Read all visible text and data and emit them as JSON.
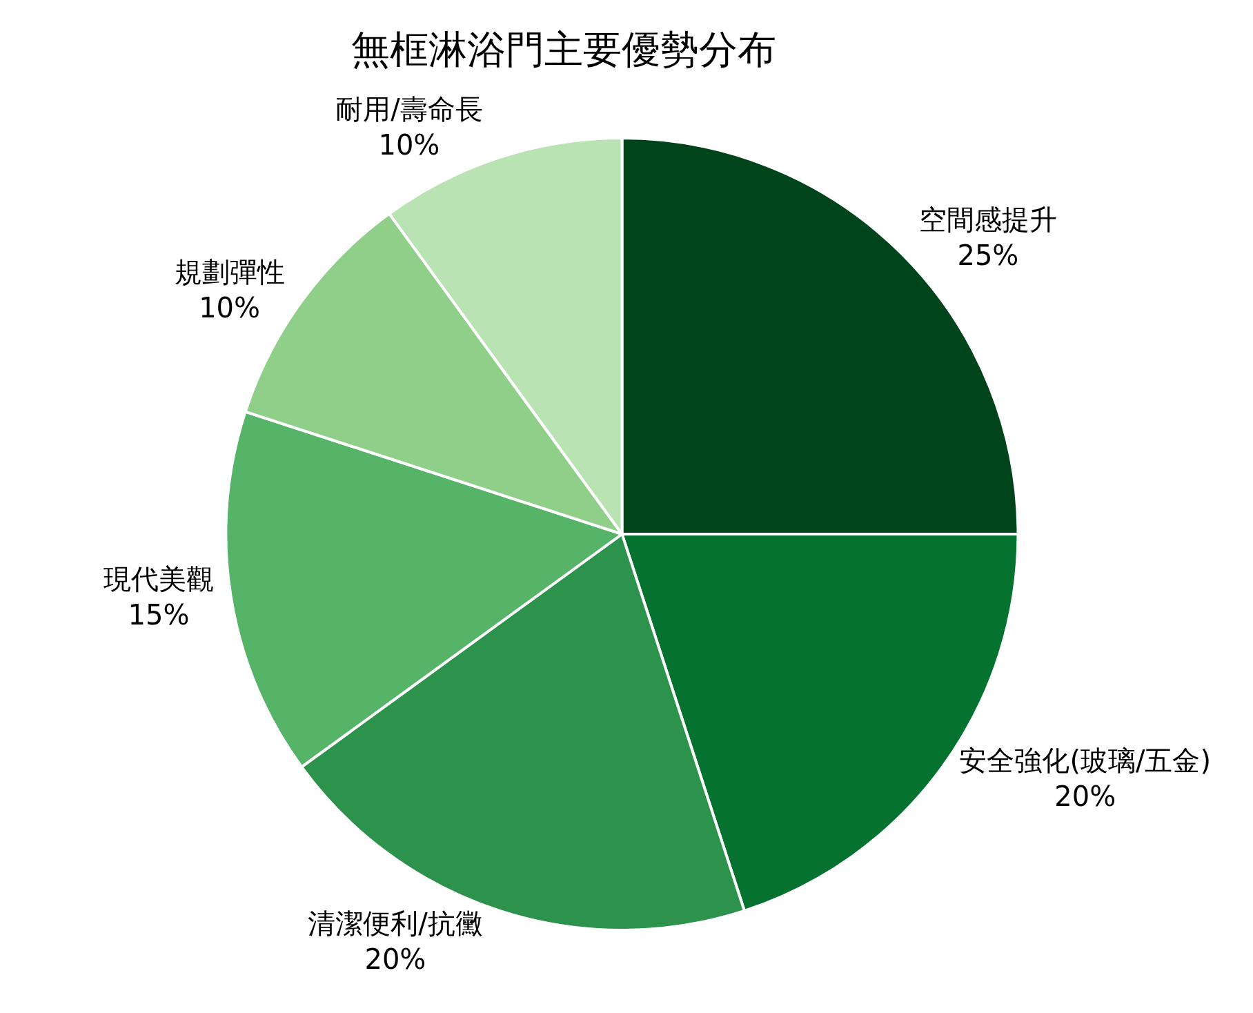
{
  "chart_data": {
    "type": "pie",
    "title": "無框淋浴門主要優勢分布",
    "categories": [
      "空間感提升",
      "安全強化(玻璃/五金)",
      "清潔便利/抗黴",
      "現代美觀",
      "規劃彈性",
      "耐用/壽命長"
    ],
    "values": [
      25,
      20,
      20,
      15,
      10,
      10
    ],
    "value_labels": [
      "25%",
      "20%",
      "20%",
      "15%",
      "10%",
      "10%"
    ],
    "colors": [
      "#00441b",
      "#067230",
      "#2d924b",
      "#55b467",
      "#8fcf89",
      "#b9e3b2"
    ]
  }
}
